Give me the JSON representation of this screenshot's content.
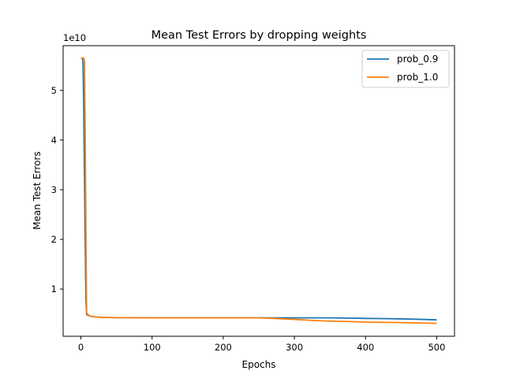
{
  "chart_data": {
    "type": "line",
    "title": "Mean Test Errors by dropping weights",
    "xlabel": "Epochs",
    "ylabel": "Mean Test Errors",
    "y_offset_label": "1e10",
    "xlim": [
      -25,
      525
    ],
    "ylim": [
      0.05,
      5.9
    ],
    "y_units": "1e10",
    "xticks": [
      0,
      100,
      200,
      300,
      400,
      500
    ],
    "xtick_labels": [
      "0",
      "100",
      "200",
      "300",
      "400",
      "500"
    ],
    "yticks": [
      1,
      2,
      3,
      4,
      5
    ],
    "ytick_labels": [
      "1",
      "2",
      "3",
      "4",
      "5"
    ],
    "grid": false,
    "legend_position": "top-right",
    "series": [
      {
        "name": "prob_0.9",
        "color": "#1f77b4",
        "x": [
          0,
          2,
          3,
          4,
          5,
          6,
          7,
          8,
          10,
          15,
          20,
          30,
          50,
          100,
          150,
          200,
          250,
          280,
          300,
          330,
          350,
          380,
          400,
          430,
          450,
          480,
          500
        ],
        "y": [
          5.65,
          5.65,
          5.55,
          4.6,
          3.3,
          2.0,
          0.8,
          0.49,
          0.47,
          0.45,
          0.44,
          0.43,
          0.425,
          0.42,
          0.42,
          0.42,
          0.42,
          0.42,
          0.42,
          0.42,
          0.42,
          0.415,
          0.41,
          0.405,
          0.4,
          0.39,
          0.38
        ]
      },
      {
        "name": "prob_1.0",
        "color": "#ff7f0e",
        "x": [
          0,
          2,
          4,
          5,
          6,
          7,
          8,
          10,
          15,
          20,
          30,
          50,
          100,
          150,
          200,
          250,
          270,
          300,
          330,
          350,
          380,
          400,
          430,
          450,
          480,
          500
        ],
        "y": [
          5.65,
          5.65,
          5.65,
          5.6,
          4.2,
          2.2,
          0.52,
          0.48,
          0.45,
          0.44,
          0.43,
          0.425,
          0.42,
          0.42,
          0.42,
          0.42,
          0.41,
          0.39,
          0.365,
          0.355,
          0.345,
          0.335,
          0.33,
          0.325,
          0.315,
          0.31
        ]
      }
    ]
  }
}
